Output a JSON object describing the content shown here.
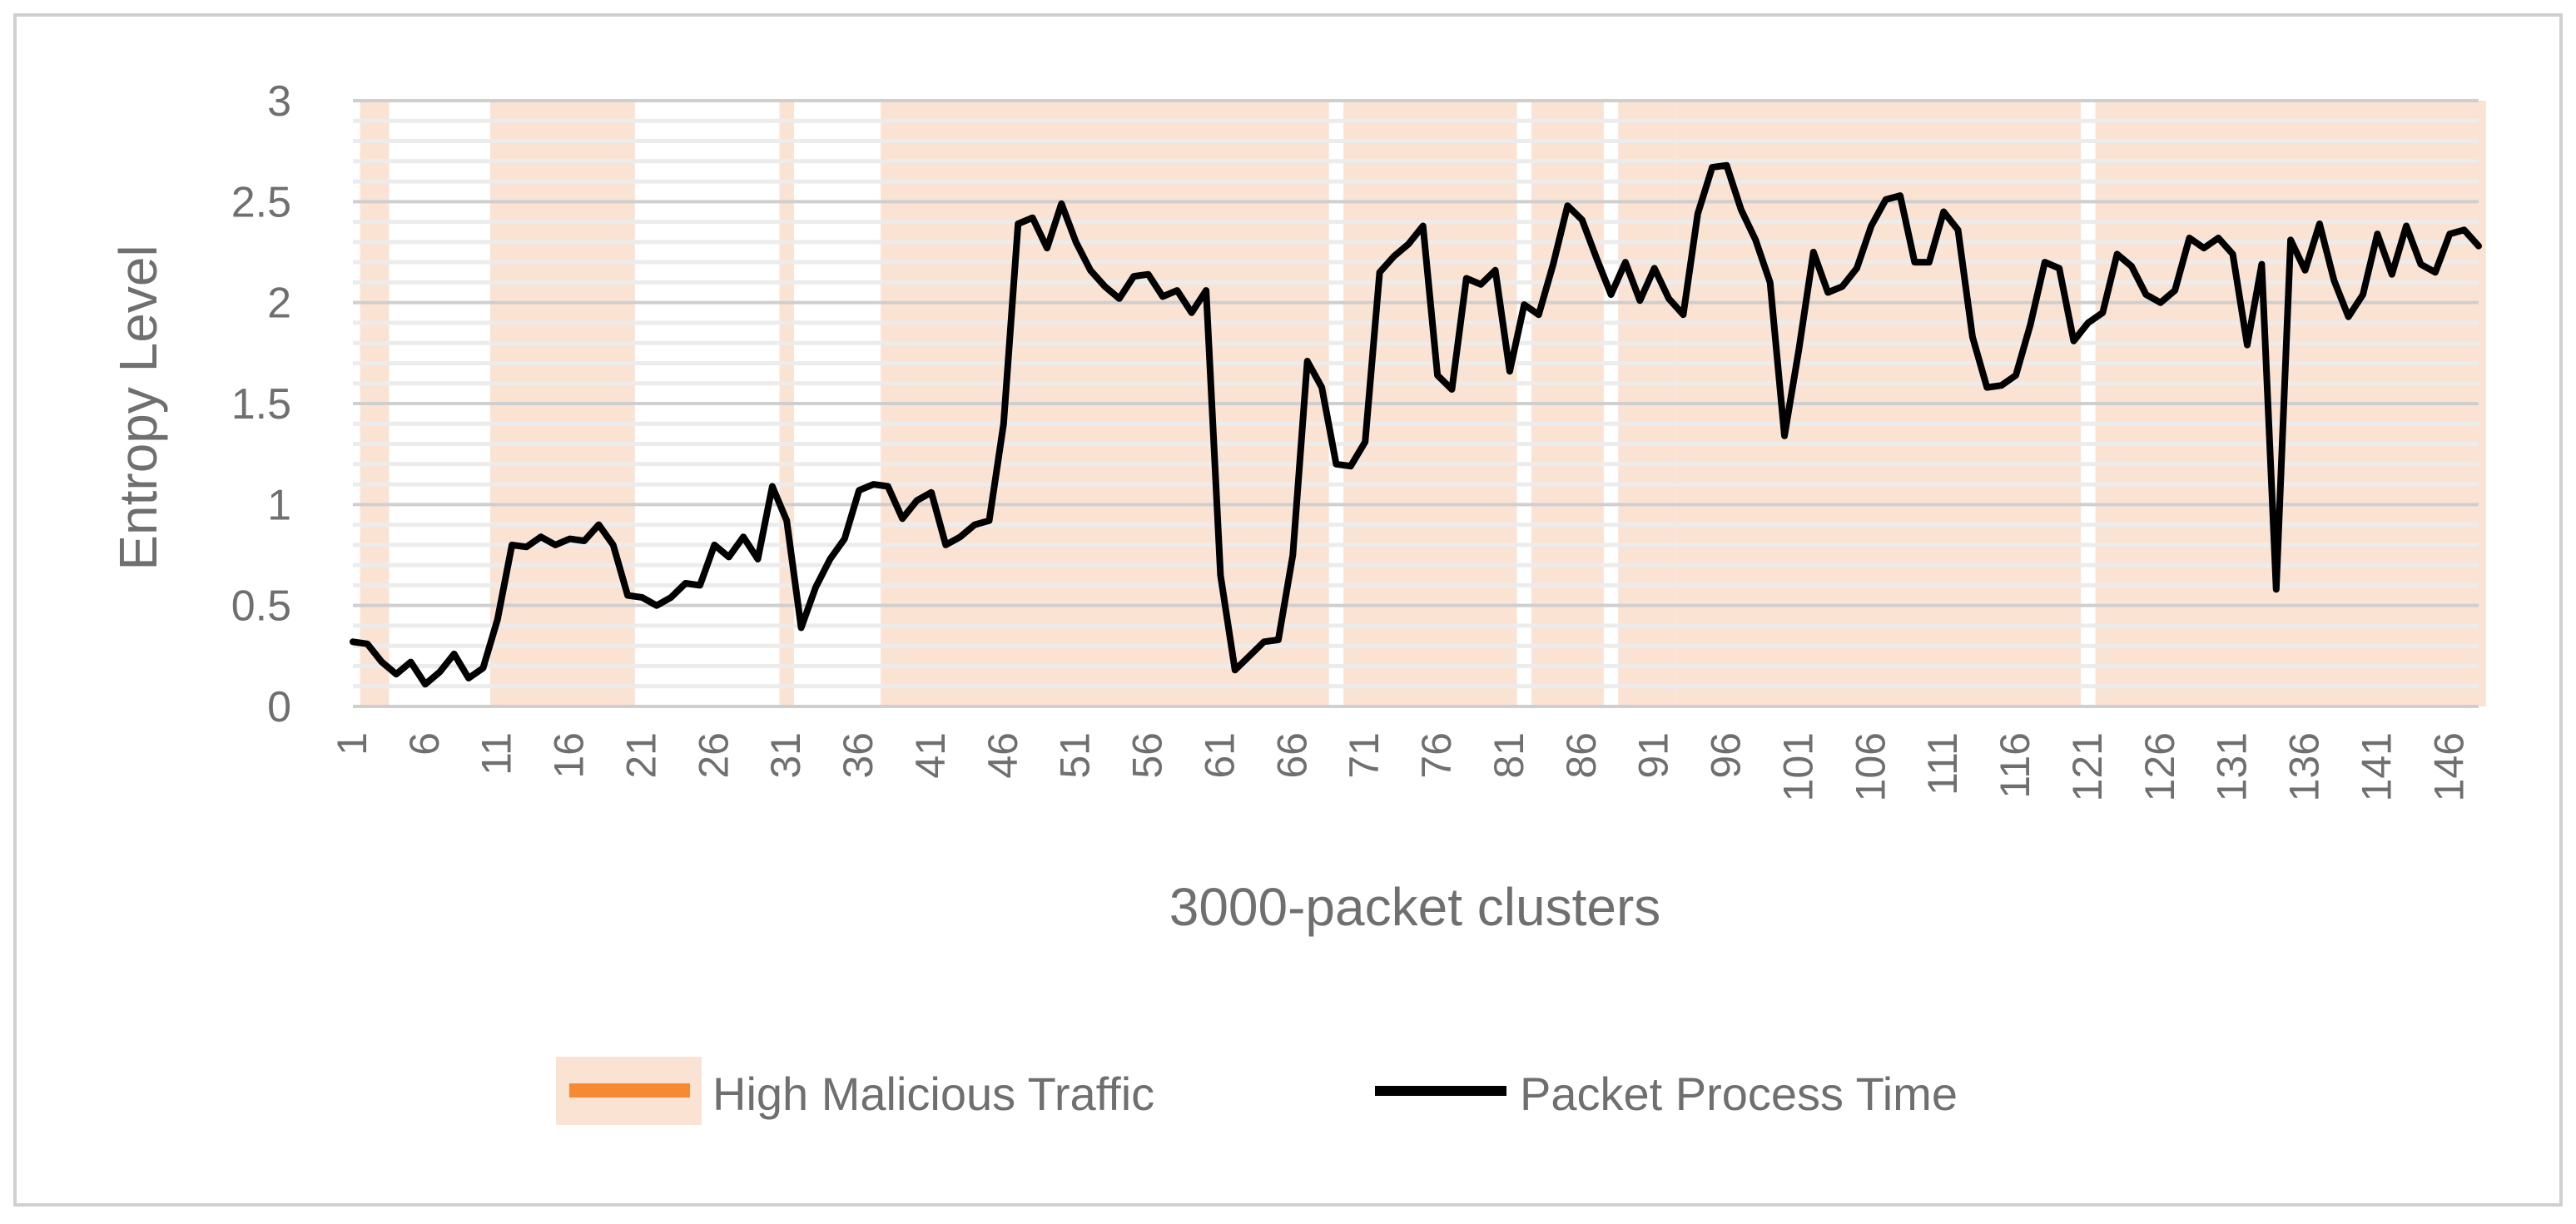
{
  "chart_data": {
    "type": "line",
    "xlabel": "3000-packet clusters",
    "ylabel": "Entropy Level",
    "ylim": [
      0,
      3
    ],
    "xlim": [
      1,
      148
    ],
    "y_ticks": [
      "0",
      "0.5",
      "1",
      "1.5",
      "2",
      "2.5",
      "3"
    ],
    "x_ticks": [
      "1",
      "6",
      "11",
      "16",
      "21",
      "26",
      "31",
      "36",
      "41",
      "46",
      "51",
      "56",
      "61",
      "66",
      "71",
      "76",
      "81",
      "86",
      "91",
      "96",
      "101",
      "106",
      "111",
      "116",
      "121",
      "126",
      "131",
      "136",
      "141",
      "146"
    ],
    "x_tick_values": [
      1,
      6,
      11,
      16,
      21,
      26,
      31,
      36,
      41,
      46,
      51,
      56,
      61,
      66,
      71,
      76,
      81,
      86,
      91,
      96,
      101,
      106,
      111,
      116,
      121,
      126,
      131,
      136,
      141,
      146
    ],
    "grid": true,
    "legend_position": "bottom",
    "legend": {
      "highlight_label": "High Malicious Traffic",
      "line_label": "Packet Process Time"
    },
    "colors": {
      "line": "#000000",
      "highlight": "#fbe3d3",
      "highlight_marker": "#f58a33",
      "grid": "#d9d9d9",
      "axis_text": "#6f6f6f",
      "border": "#d0d0d0"
    },
    "highlight_ranges": [
      [
        2,
        3
      ],
      [
        11,
        20
      ],
      [
        31,
        31
      ],
      [
        38,
        68
      ],
      [
        70,
        81
      ],
      [
        83,
        87
      ],
      [
        89,
        90
      ],
      [
        91,
        92
      ],
      [
        93,
        101
      ],
      [
        101,
        115
      ],
      [
        115,
        120
      ],
      [
        122,
        131
      ],
      [
        131,
        148
      ]
    ],
    "series": [
      {
        "name": "Packet Process Time",
        "x": [
          1,
          2,
          3,
          4,
          5,
          6,
          7,
          8,
          9,
          10,
          11,
          12,
          13,
          14,
          15,
          16,
          17,
          18,
          19,
          20,
          21,
          22,
          23,
          24,
          25,
          26,
          27,
          28,
          29,
          30,
          31,
          32,
          33,
          34,
          35,
          36,
          37,
          38,
          39,
          40,
          41,
          42,
          43,
          44,
          45,
          46,
          47,
          48,
          49,
          50,
          51,
          52,
          53,
          54,
          55,
          56,
          57,
          58,
          59,
          60,
          61,
          62,
          63,
          64,
          65,
          66,
          67,
          68,
          69,
          70,
          71,
          72,
          73,
          74,
          75,
          76,
          77,
          78,
          79,
          80,
          81,
          82,
          83,
          84,
          85,
          86,
          87,
          88,
          89,
          90,
          91,
          92,
          93,
          94,
          95,
          96,
          97,
          98,
          99,
          100,
          101,
          102,
          103,
          104,
          105,
          106,
          107,
          108,
          109,
          110,
          111,
          112,
          113,
          114,
          115,
          116,
          117,
          118,
          119,
          120,
          121,
          122,
          123,
          124,
          125,
          126,
          127,
          128,
          129,
          130,
          131,
          132,
          133,
          134,
          135,
          136,
          137,
          138,
          139,
          140,
          141,
          142,
          143,
          144,
          145,
          146,
          147,
          148
        ],
        "values": [
          0.32,
          0.31,
          0.22,
          0.16,
          0.22,
          0.11,
          0.17,
          0.26,
          0.14,
          0.19,
          0.43,
          0.8,
          0.79,
          0.84,
          0.8,
          0.83,
          0.82,
          0.9,
          0.8,
          0.55,
          0.54,
          0.5,
          0.54,
          0.61,
          0.6,
          0.8,
          0.74,
          0.84,
          0.73,
          1.09,
          0.92,
          0.39,
          0.59,
          0.73,
          0.83,
          1.07,
          1.1,
          1.09,
          0.93,
          1.02,
          1.06,
          0.8,
          0.84,
          0.9,
          0.92,
          1.4,
          2.39,
          2.42,
          2.27,
          2.49,
          2.3,
          2.16,
          2.08,
          2.02,
          2.13,
          2.14,
          2.03,
          2.06,
          1.95,
          2.06,
          0.65,
          0.18,
          0.25,
          0.32,
          0.33,
          0.75,
          1.71,
          1.58,
          1.2,
          1.19,
          1.31,
          2.15,
          2.23,
          2.29,
          2.38,
          1.64,
          1.57,
          2.12,
          2.09,
          2.16,
          1.66,
          1.99,
          1.94,
          2.19,
          2.48,
          2.41,
          2.22,
          2.04,
          2.2,
          2.01,
          2.17,
          2.02,
          1.94,
          2.44,
          2.67,
          2.68,
          2.46,
          2.31,
          2.1,
          1.34,
          1.77,
          2.25,
          2.05,
          2.08,
          2.17,
          2.38,
          2.51,
          2.53,
          2.2,
          2.2,
          2.45,
          2.36,
          1.83,
          1.58,
          1.59,
          1.64,
          1.89,
          2.2,
          2.17,
          1.81,
          1.9,
          1.95,
          2.24,
          2.18,
          2.04,
          2.0,
          2.06,
          2.32,
          2.27,
          2.32,
          2.24,
          1.79,
          2.19,
          0.58,
          2.31,
          2.16,
          2.39,
          2.11,
          1.93,
          2.04,
          2.34,
          2.14,
          2.38,
          2.19,
          2.15,
          2.34,
          2.36,
          2.28
        ]
      }
    ]
  }
}
